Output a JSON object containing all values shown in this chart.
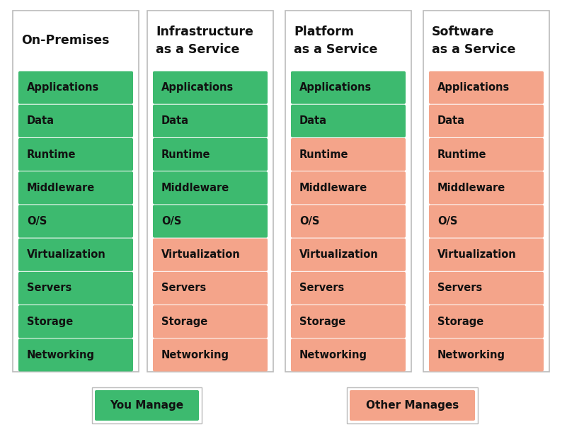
{
  "columns": [
    {
      "title": "On-Premises",
      "rows": [
        "Applications",
        "Data",
        "Runtime",
        "Middleware",
        "O/S",
        "Virtualization",
        "Servers",
        "Storage",
        "Networking"
      ],
      "colors": [
        "green",
        "green",
        "green",
        "green",
        "green",
        "green",
        "green",
        "green",
        "green"
      ]
    },
    {
      "title": "Infrastructure\nas a Service",
      "rows": [
        "Applications",
        "Data",
        "Runtime",
        "Middleware",
        "O/S",
        "Virtualization",
        "Servers",
        "Storage",
        "Networking"
      ],
      "colors": [
        "green",
        "green",
        "green",
        "green",
        "green",
        "salmon",
        "salmon",
        "salmon",
        "salmon"
      ]
    },
    {
      "title": "Platform\nas a Service",
      "rows": [
        "Applications",
        "Data",
        "Runtime",
        "Middleware",
        "O/S",
        "Virtualization",
        "Servers",
        "Storage",
        "Networking"
      ],
      "colors": [
        "green",
        "green",
        "salmon",
        "salmon",
        "salmon",
        "salmon",
        "salmon",
        "salmon",
        "salmon"
      ]
    },
    {
      "title": "Software\nas a Service",
      "rows": [
        "Applications",
        "Data",
        "Runtime",
        "Middleware",
        "O/S",
        "Virtualization",
        "Servers",
        "Storage",
        "Networking"
      ],
      "colors": [
        "salmon",
        "salmon",
        "salmon",
        "salmon",
        "salmon",
        "salmon",
        "salmon",
        "salmon",
        "salmon"
      ]
    }
  ],
  "green_color": "#3dba6f",
  "salmon_color": "#f4a48a",
  "background_color": "#ffffff",
  "border_color": "#bbbbbb",
  "text_color": "#111111",
  "title_fontsize": 12.5,
  "row_fontsize": 10.5,
  "legend_you_manage": "You Manage",
  "legend_other_manages": "Other Manages",
  "figsize": [
    8.01,
    6.27
  ],
  "dpi": 100
}
